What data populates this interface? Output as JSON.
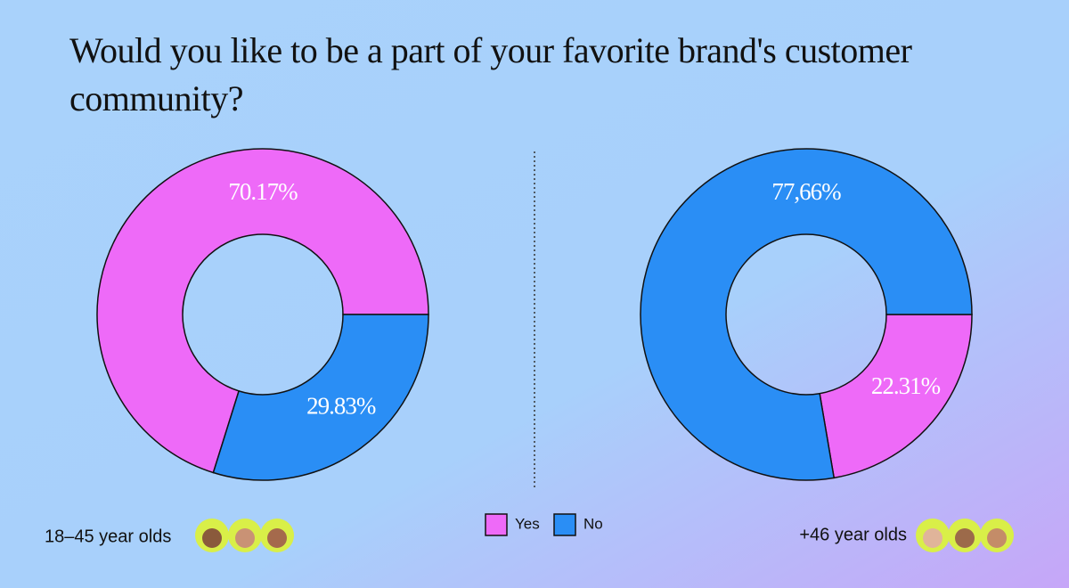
{
  "title": "Would you like to be a part of your favorite brand's customer community?",
  "legend": {
    "names": [
      "Yes",
      "No"
    ],
    "colors": [
      "#ee6af8",
      "#2a8ef5"
    ]
  },
  "chart_data": [
    {
      "type": "pie",
      "subtitle": "18–45 year olds",
      "values": [
        70.17,
        29.83
      ],
      "value_labels": [
        "70.17%",
        "29.83%"
      ]
    },
    {
      "type": "pie",
      "subtitle": "+46 year olds",
      "values": [
        22.31,
        77.66
      ],
      "value_labels": [
        "22.31%",
        "77,66%"
      ]
    }
  ]
}
